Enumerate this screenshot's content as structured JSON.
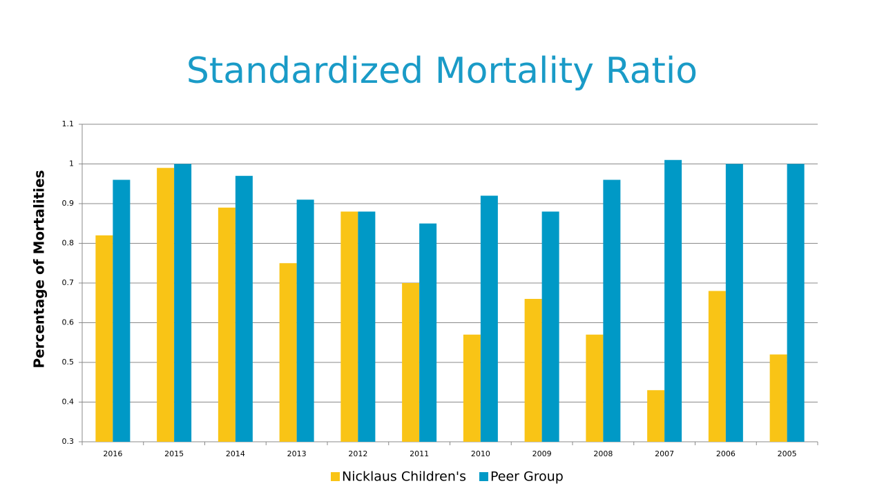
{
  "chart_data": {
    "type": "bar",
    "title": "Standardized Mortality Ratio",
    "y_label": "Percentage of Mortalities",
    "categories": [
      "2016",
      "2015",
      "2014",
      "2013",
      "2012",
      "2011",
      "2010",
      "2009",
      "2008",
      "2007",
      "2006",
      "2005"
    ],
    "series": [
      {
        "name": "Nicklaus Children's",
        "color": "#f9c416",
        "values": [
          0.82,
          0.99,
          0.89,
          0.75,
          0.88,
          0.7,
          0.57,
          0.66,
          0.57,
          0.43,
          0.68,
          0.52
        ]
      },
      {
        "name": "Peer Group",
        "color": "#0099c6",
        "values": [
          0.96,
          1.0,
          0.97,
          0.91,
          0.88,
          0.85,
          0.92,
          0.88,
          0.96,
          1.01,
          1.0,
          1.0
        ]
      }
    ],
    "ylim": [
      0.3,
      1.1
    ],
    "yticks": [
      0.3,
      0.4,
      0.5,
      0.6,
      0.7,
      0.8,
      0.9,
      1,
      1.1
    ],
    "grid": true,
    "legend": "bottom"
  }
}
